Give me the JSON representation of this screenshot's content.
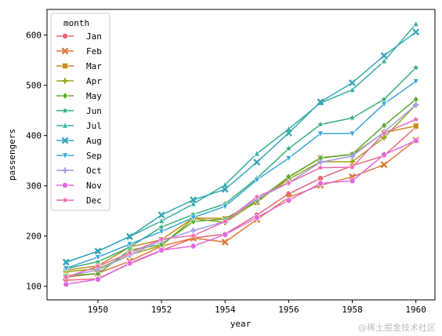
{
  "chart_data": {
    "type": "line",
    "title": "",
    "xlabel": "year",
    "ylabel": "passengers",
    "xlim": [
      1948.4,
      1960.6
    ],
    "ylim": [
      73,
      651
    ],
    "x_ticks": [
      1950,
      1952,
      1954,
      1956,
      1958,
      1960
    ],
    "y_ticks": [
      100,
      200,
      300,
      400,
      500,
      600
    ],
    "x": [
      1949,
      1950,
      1951,
      1952,
      1953,
      1954,
      1955,
      1956,
      1957,
      1958,
      1959,
      1960
    ],
    "grid": false,
    "legend": {
      "title": "month",
      "placement": "top-left"
    },
    "series": [
      {
        "name": "Jan",
        "color": "#e8677b",
        "marker": "circle",
        "values": [
          112,
          115,
          145,
          171,
          196,
          204,
          242,
          284,
          315,
          340,
          360,
          417
        ]
      },
      {
        "name": "Feb",
        "color": "#e07a3a",
        "marker": "x",
        "values": [
          118,
          126,
          150,
          180,
          196,
          188,
          233,
          277,
          301,
          318,
          342,
          391
        ]
      },
      {
        "name": "Mar",
        "color": "#c48f1e",
        "marker": "square",
        "values": [
          132,
          141,
          178,
          193,
          236,
          235,
          267,
          317,
          356,
          362,
          406,
          419
        ]
      },
      {
        "name": "Apr",
        "color": "#9da51a",
        "marker": "plus",
        "values": [
          129,
          135,
          163,
          181,
          235,
          227,
          269,
          313,
          348,
          348,
          396,
          461
        ]
      },
      {
        "name": "May",
        "color": "#5aab2f",
        "marker": "diamond",
        "values": [
          121,
          125,
          172,
          183,
          229,
          234,
          270,
          318,
          355,
          363,
          420,
          472
        ]
      },
      {
        "name": "Jun",
        "color": "#36ad7c",
        "marker": "star",
        "values": [
          135,
          149,
          178,
          218,
          243,
          264,
          315,
          374,
          422,
          435,
          472,
          535
        ]
      },
      {
        "name": "Jul",
        "color": "#36ab9d",
        "marker": "triangle-up",
        "values": [
          148,
          170,
          199,
          230,
          264,
          302,
          364,
          413,
          465,
          491,
          548,
          622
        ]
      },
      {
        "name": "Aug",
        "color": "#38a7b8",
        "marker": "x",
        "values": [
          148,
          170,
          199,
          242,
          272,
          293,
          347,
          405,
          467,
          505,
          559,
          606
        ]
      },
      {
        "name": "Sep",
        "color": "#3ba3d9",
        "marker": "triangle-down",
        "values": [
          136,
          158,
          184,
          209,
          237,
          259,
          312,
          355,
          404,
          404,
          463,
          508
        ]
      },
      {
        "name": "Oct",
        "color": "#a39ee8",
        "marker": "plus",
        "values": [
          119,
          133,
          162,
          191,
          211,
          229,
          274,
          306,
          347,
          359,
          407,
          461
        ]
      },
      {
        "name": "Nov",
        "color": "#df6adf",
        "marker": "circle",
        "values": [
          104,
          114,
          146,
          172,
          180,
          203,
          237,
          271,
          305,
          310,
          362,
          390
        ]
      },
      {
        "name": "Dec",
        "color": "#ea69b1",
        "marker": "star",
        "values": [
          118,
          140,
          166,
          194,
          201,
          229,
          278,
          306,
          336,
          337,
          405,
          432
        ]
      }
    ]
  },
  "watermark": "@稀土掘金技术社区"
}
